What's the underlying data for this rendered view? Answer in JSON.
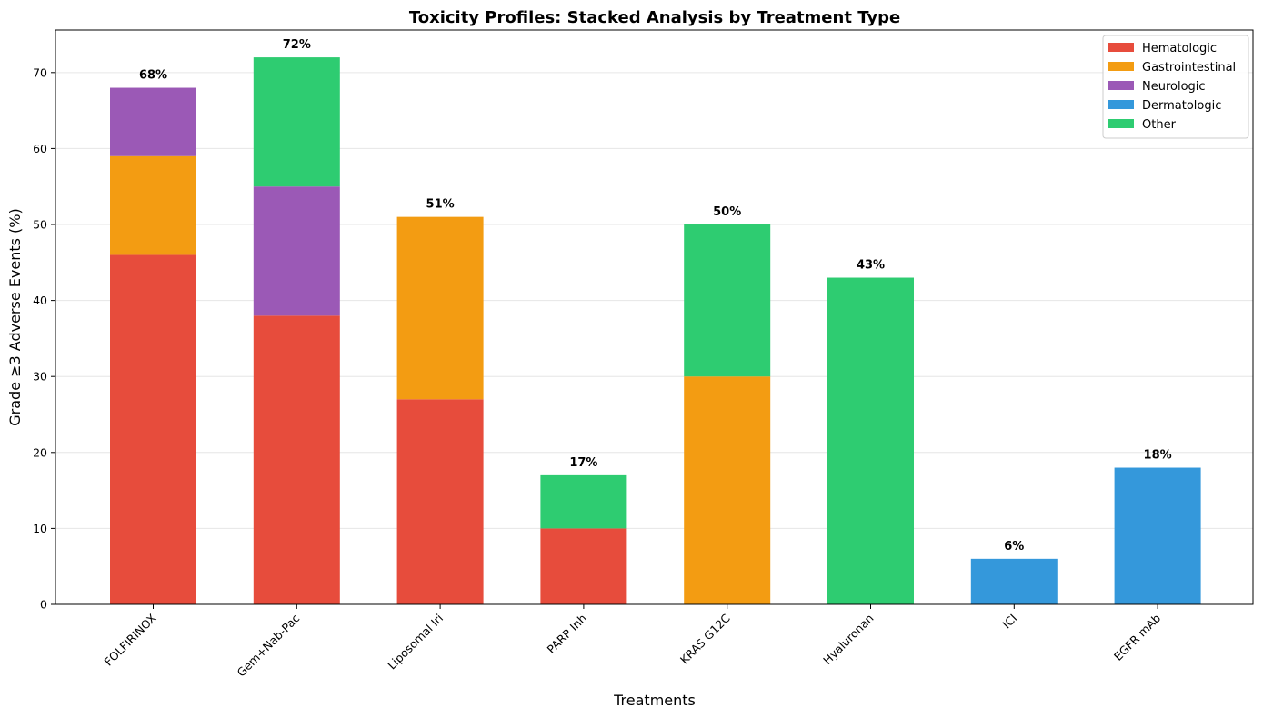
{
  "chart_data": {
    "type": "bar",
    "stacked": true,
    "title": "Toxicity Profiles: Stacked Analysis by Treatment Type",
    "xlabel": "Treatments",
    "ylabel": "Grade ≥3 Adverse Events (%)",
    "ylim": [
      0,
      75.6
    ],
    "yticks": [
      0,
      10,
      20,
      30,
      40,
      50,
      60,
      70
    ],
    "grid": "y",
    "legend_position": "top-right",
    "categories": [
      "FOLFIRINOX",
      "Gem+Nab-Pac",
      "Liposomal Iri",
      "PARP Inh",
      "KRAS G12C",
      "Hyaluronan",
      "ICI",
      "EGFR mAb"
    ],
    "series": [
      {
        "name": "Hematologic",
        "color": "#e74c3c",
        "values": [
          46,
          38,
          27,
          10,
          0,
          0,
          0,
          0
        ]
      },
      {
        "name": "Gastrointestinal",
        "color": "#f39c12",
        "values": [
          13,
          0,
          24,
          0,
          30,
          0,
          0,
          0
        ]
      },
      {
        "name": "Neurologic",
        "color": "#9b59b6",
        "values": [
          9,
          17,
          0,
          0,
          0,
          0,
          0,
          0
        ]
      },
      {
        "name": "Dermatologic",
        "color": "#3498db",
        "values": [
          0,
          0,
          0,
          0,
          0,
          0,
          6,
          18
        ]
      },
      {
        "name": "Other",
        "color": "#2ecc71",
        "values": [
          0,
          17,
          0,
          7,
          20,
          43,
          0,
          0
        ]
      }
    ],
    "total_labels": [
      "68%",
      "72%",
      "51%",
      "17%",
      "50%",
      "43%",
      "6%",
      "18%"
    ]
  }
}
